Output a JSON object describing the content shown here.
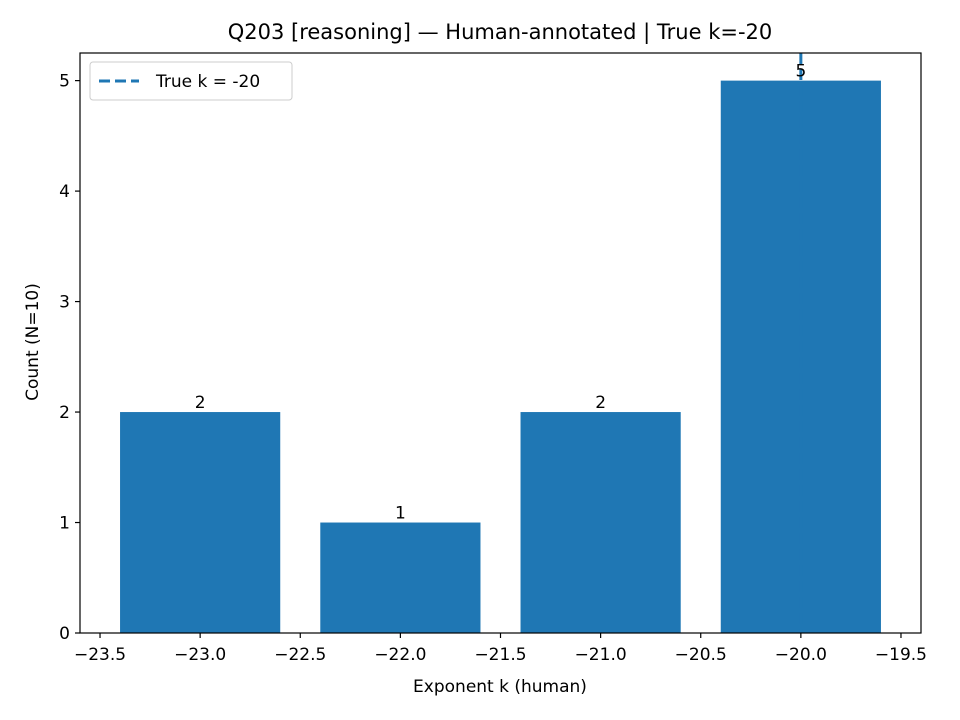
{
  "chart_data": {
    "type": "bar",
    "title": "Q203 [reasoning] — Human-annotated | True k=-20",
    "xlabel": "Exponent k (human)",
    "ylabel": "Count (N=10)",
    "bar_width": 0.8,
    "series": [
      {
        "x": [
          -23,
          -22,
          -21,
          -20
        ],
        "values": [
          2,
          1,
          2,
          5
        ],
        "labels": [
          "2",
          "1",
          "2",
          "5"
        ],
        "color": "#1f77b4"
      }
    ],
    "reference_line": {
      "x": -20,
      "label": "True k = -20",
      "style": "dashed",
      "color": "#1f77b4"
    },
    "xlim": [
      -23.6,
      -19.4
    ],
    "ylim": [
      0,
      5.25
    ],
    "xticks": [
      -23.5,
      -23.0,
      -22.5,
      -22.0,
      -21.5,
      -21.0,
      -20.5,
      -20.0,
      -19.5
    ],
    "xtick_labels": [
      "−23.5",
      "−23.0",
      "−22.5",
      "−22.0",
      "−21.5",
      "−21.0",
      "−20.5",
      "−20.0",
      "−19.5"
    ],
    "yticks": [
      0,
      1,
      2,
      3,
      4,
      5
    ],
    "ytick_labels": [
      "0",
      "1",
      "2",
      "3",
      "4",
      "5"
    ],
    "grid": false,
    "legend_position": "upper-left"
  }
}
